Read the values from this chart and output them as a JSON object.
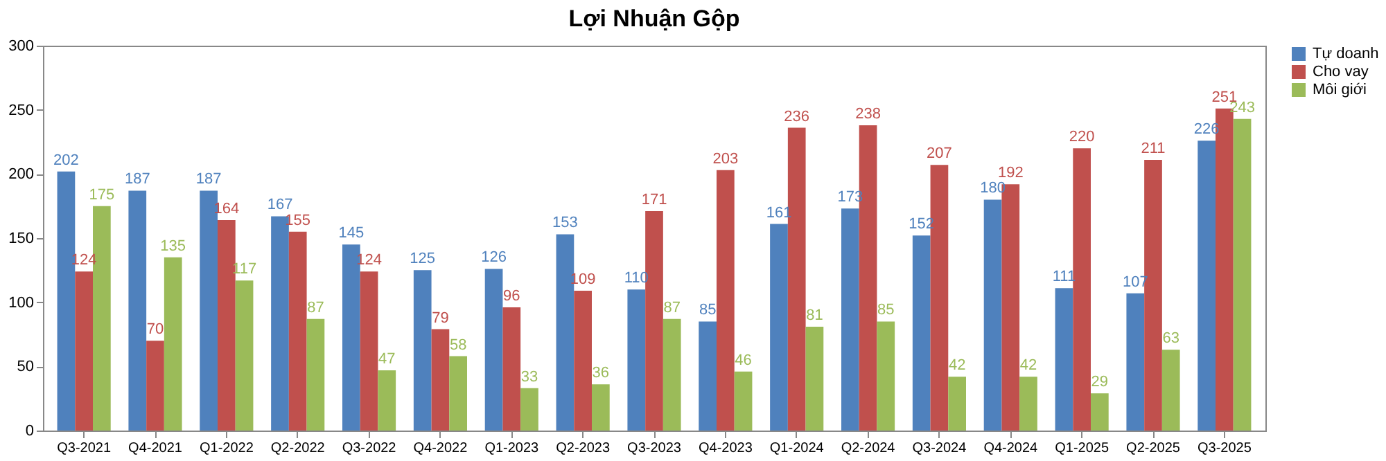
{
  "chart_data": {
    "type": "bar",
    "title": "Lợi Nhuận Gộp",
    "categories": [
      "Q3-2021",
      "Q4-2021",
      "Q1-2022",
      "Q2-2022",
      "Q3-2022",
      "Q4-2022",
      "Q1-2023",
      "Q2-2023",
      "Q3-2023",
      "Q4-2023",
      "Q1-2024",
      "Q2-2024",
      "Q3-2024",
      "Q4-2024",
      "Q1-2025",
      "Q2-2025",
      "Q3-2025"
    ],
    "series": [
      {
        "name": "Tự doanh",
        "color": "#4f81bd",
        "values": [
          202,
          187,
          187,
          167,
          145,
          125,
          126,
          153,
          110,
          85,
          161,
          173,
          152,
          180,
          111,
          107,
          226
        ]
      },
      {
        "name": "Cho vay",
        "color": "#c0504d",
        "values": [
          124,
          70,
          164,
          155,
          124,
          79,
          96,
          109,
          171,
          203,
          236,
          238,
          207,
          192,
          220,
          211,
          251
        ]
      },
      {
        "name": "Môi giới",
        "color": "#9bbb59",
        "values": [
          175,
          135,
          117,
          87,
          47,
          58,
          33,
          36,
          87,
          46,
          81,
          85,
          42,
          42,
          29,
          63,
          243
        ]
      }
    ],
    "ylim": [
      0,
      300
    ],
    "yticks": [
      0,
      50,
      100,
      150,
      200,
      250,
      300
    ],
    "grid": false,
    "legend": "right",
    "data_labels": true
  }
}
